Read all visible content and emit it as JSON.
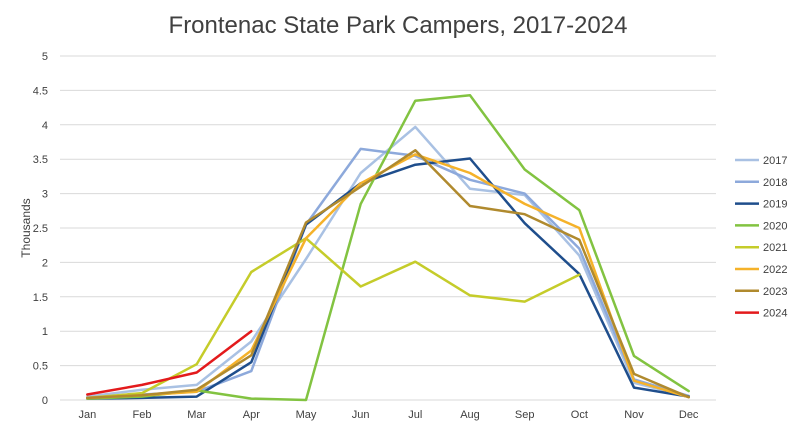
{
  "chart_data": {
    "type": "line",
    "title": "Frontenac State Park Campers, 2017-2024",
    "xlabel": "",
    "ylabel": "Thousands",
    "ylim": [
      0,
      5
    ],
    "yticks": [
      "0",
      "0.5",
      "1",
      "1.5",
      "2",
      "2.5",
      "3",
      "3.5",
      "4",
      "4.5",
      "5"
    ],
    "categories": [
      "Jan",
      "Feb",
      "Mar",
      "Apr",
      "May",
      "Jun",
      "Jul",
      "Aug",
      "Sep",
      "Oct",
      "Nov",
      "Dec"
    ],
    "grid": "horizontal",
    "legend_position": "right",
    "series": [
      {
        "name": "2017",
        "color": "#A9C1E3",
        "values": [
          0.05,
          0.15,
          0.22,
          0.85,
          2.05,
          3.3,
          3.97,
          3.07,
          2.98,
          2.1,
          0.25,
          0.05
        ]
      },
      {
        "name": "2018",
        "color": "#8DA9DB",
        "values": [
          0.03,
          0.08,
          0.12,
          0.42,
          2.55,
          3.65,
          3.55,
          3.2,
          3.0,
          2.2,
          0.3,
          0.06
        ]
      },
      {
        "name": "2019",
        "color": "#1F4E8C",
        "values": [
          0.02,
          0.03,
          0.05,
          0.55,
          2.55,
          3.15,
          3.42,
          3.51,
          2.57,
          1.83,
          0.18,
          0.05
        ]
      },
      {
        "name": "2020",
        "color": "#82C341",
        "values": [
          0.02,
          0.05,
          0.14,
          0.02,
          0.0,
          2.85,
          4.35,
          4.43,
          3.35,
          2.76,
          0.64,
          0.13
        ]
      },
      {
        "name": "2021",
        "color": "#C5CC2A",
        "values": [
          0.03,
          0.1,
          0.52,
          1.86,
          2.35,
          1.65,
          2.01,
          1.52,
          1.43,
          1.82,
          null,
          null
        ]
      },
      {
        "name": "2022",
        "color": "#F5B22A",
        "values": [
          0.03,
          0.07,
          0.12,
          0.72,
          2.35,
          3.15,
          3.57,
          3.3,
          2.85,
          2.5,
          0.28,
          0.04
        ]
      },
      {
        "name": "2023",
        "color": "#B08A2E",
        "values": [
          0.03,
          0.07,
          0.15,
          0.65,
          2.58,
          3.1,
          3.63,
          2.82,
          2.7,
          2.33,
          0.38,
          0.04
        ]
      },
      {
        "name": "2024",
        "color": "#E31A1C",
        "values": [
          0.08,
          0.22,
          0.4,
          1.0,
          null,
          null,
          null,
          null,
          null,
          null,
          null,
          null
        ]
      }
    ]
  }
}
